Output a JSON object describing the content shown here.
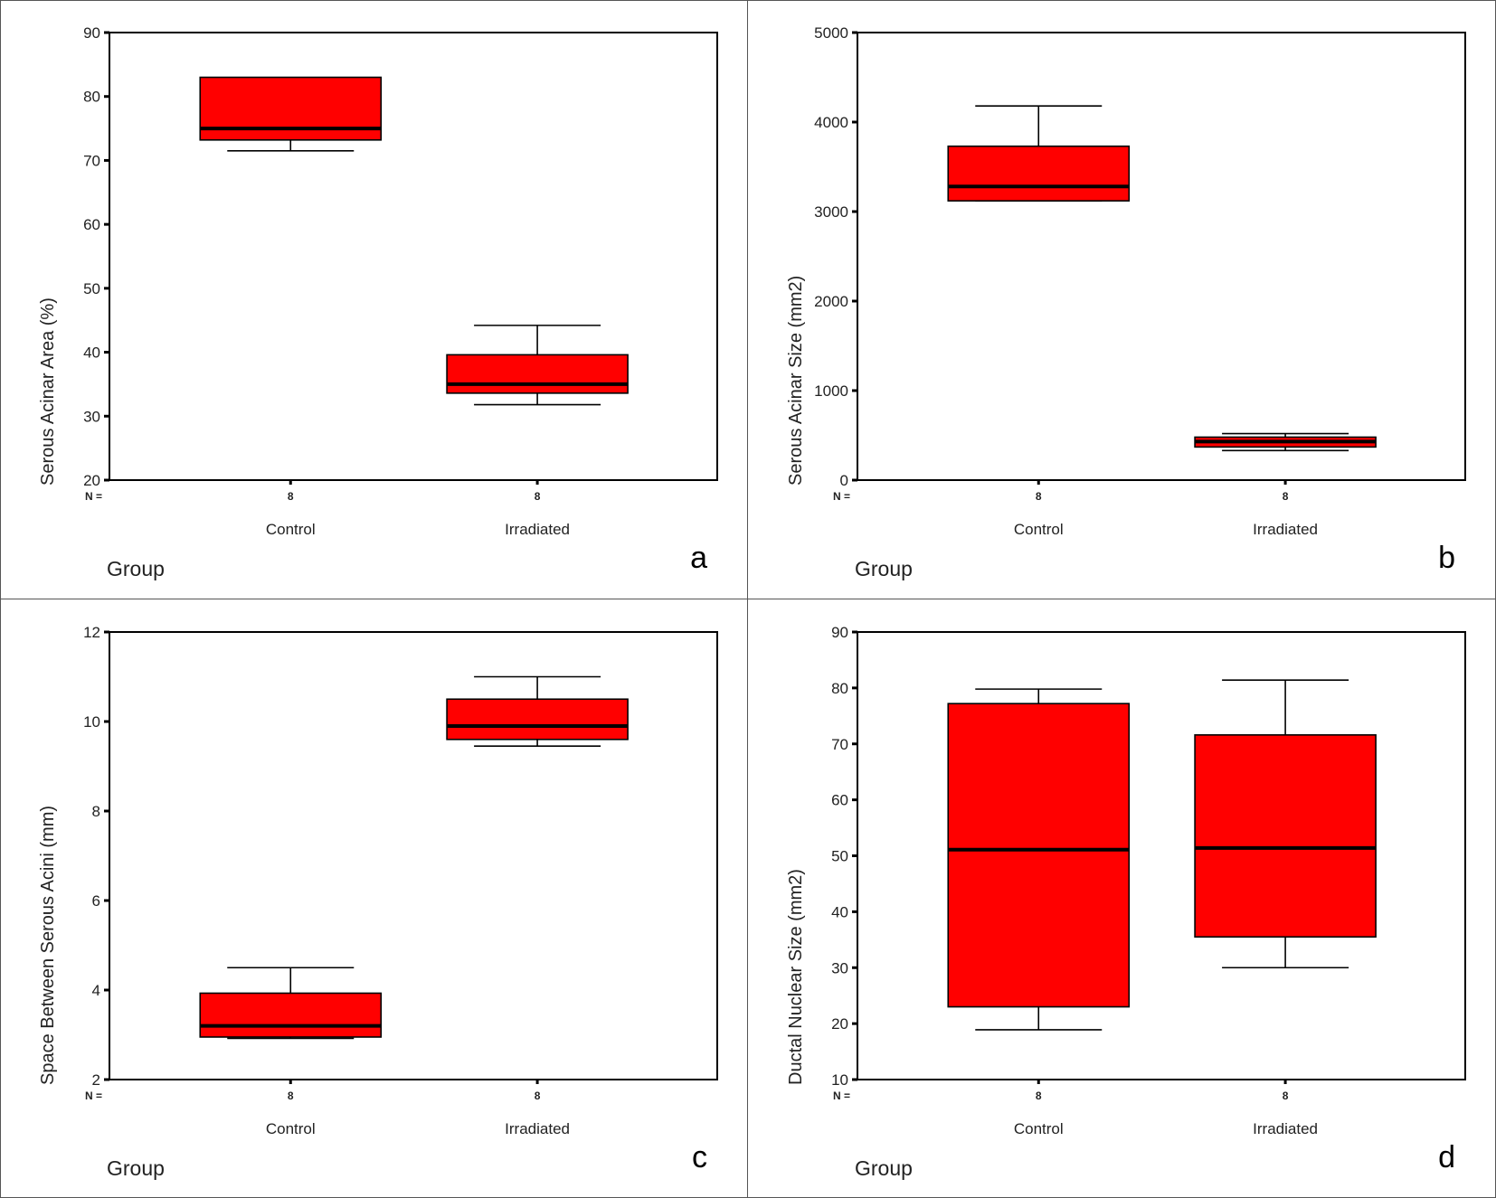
{
  "chart_data": [
    {
      "type": "boxplot",
      "panel_letter": "a",
      "ylabel": "Serous Acinar Area (%)",
      "xlabel": "Group",
      "ylim": [
        20,
        90
      ],
      "yticks": [
        20,
        30,
        40,
        50,
        60,
        70,
        80,
        90
      ],
      "n_label": "N =",
      "categories": [
        "Control",
        "Irradiated"
      ],
      "n": [
        "8",
        "8"
      ],
      "boxes": [
        {
          "whisker_low": 71.5,
          "q1": 73.2,
          "median": 75.0,
          "q3": 83.0,
          "whisker_high": 83.0
        },
        {
          "whisker_low": 31.8,
          "q1": 33.6,
          "median": 35.0,
          "q3": 39.6,
          "whisker_high": 44.2
        }
      ]
    },
    {
      "type": "boxplot",
      "panel_letter": "b",
      "ylabel": "Serous Acinar Size (mm2)",
      "xlabel": "Group",
      "ylim": [
        0,
        5000
      ],
      "yticks": [
        0,
        1000,
        2000,
        3000,
        4000,
        5000
      ],
      "n_label": "N =",
      "categories": [
        "Control",
        "Irradiated"
      ],
      "n": [
        "8",
        "8"
      ],
      "boxes": [
        {
          "whisker_low": 3120,
          "q1": 3120,
          "median": 3280,
          "q3": 3730,
          "whisker_high": 4180
        },
        {
          "whisker_low": 330,
          "q1": 370,
          "median": 430,
          "q3": 480,
          "whisker_high": 520
        }
      ]
    },
    {
      "type": "boxplot",
      "panel_letter": "c",
      "ylabel": "Space Between Serous Acini (mm)",
      "xlabel": "Group",
      "ylim": [
        2,
        12
      ],
      "yticks": [
        2,
        4,
        6,
        8,
        10,
        12
      ],
      "n_label": "N =",
      "categories": [
        "Control",
        "Irradiated"
      ],
      "n": [
        "8",
        "8"
      ],
      "boxes": [
        {
          "whisker_low": 2.92,
          "q1": 2.95,
          "median": 3.2,
          "q3": 3.93,
          "whisker_high": 4.5
        },
        {
          "whisker_low": 9.45,
          "q1": 9.6,
          "median": 9.9,
          "q3": 10.5,
          "whisker_high": 11.0
        }
      ]
    },
    {
      "type": "boxplot",
      "panel_letter": "d",
      "ylabel": "Ductal Nuclear Size (mm2)",
      "xlabel": "Group",
      "ylim": [
        10,
        90
      ],
      "yticks": [
        10,
        20,
        30,
        40,
        50,
        60,
        70,
        80,
        90
      ],
      "n_label": "N =",
      "categories": [
        "Control",
        "Irradiated"
      ],
      "n": [
        "8",
        "8"
      ],
      "boxes": [
        {
          "whisker_low": 18.9,
          "q1": 23.0,
          "median": 51.1,
          "q3": 77.2,
          "whisker_high": 79.8
        },
        {
          "whisker_low": 30.0,
          "q1": 35.5,
          "median": 51.4,
          "q3": 71.6,
          "whisker_high": 81.4
        }
      ]
    }
  ],
  "colors": {
    "box_fill": "#ff0000",
    "line": "#000000",
    "text": "#222222"
  }
}
